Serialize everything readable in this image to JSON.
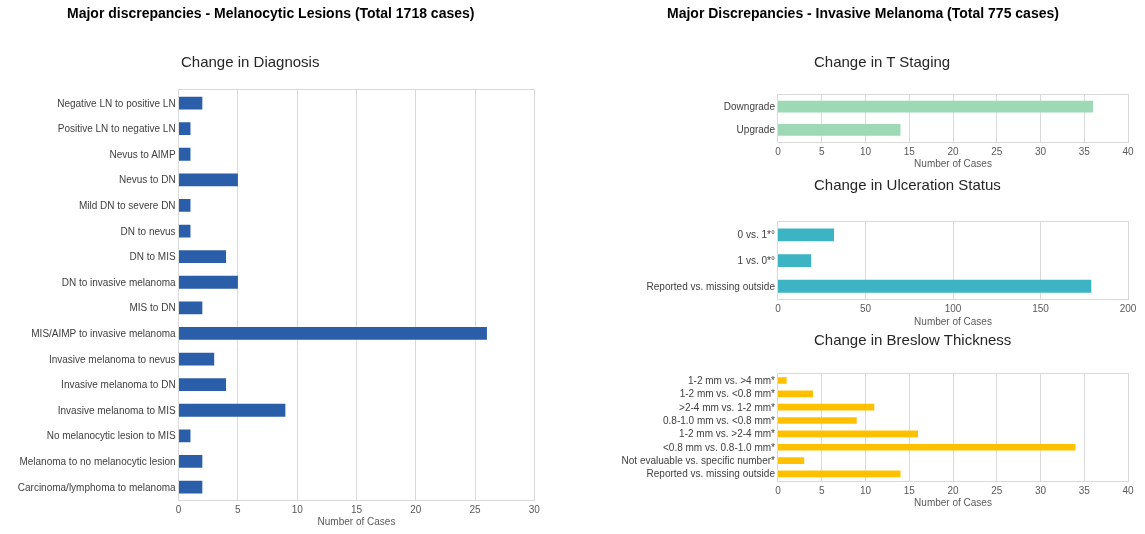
{
  "chart_data": [
    {
      "type": "bar",
      "orientation": "horizontal",
      "title": "Major discrepancies - Melanocytic Lesions (Total 1718 cases)",
      "subtitle": "Change in Diagnosis",
      "xlabel": "Number of Cases",
      "categories": [
        "Negative LN to positive LN",
        "Positive LN to negative LN",
        "Nevus to AIMP",
        "Nevus to DN",
        "Mild DN to severe DN",
        "DN to nevus",
        "DN to MIS",
        "DN to invasive melanoma",
        "MIS to DN",
        "MIS/AIMP to invasive melanoma",
        "Invasive melanoma to nevus",
        "Invasive melanoma to DN",
        "Invasive melanoma to MIS",
        "No melanocytic lesion to MIS",
        "Melanoma to no melanocytic lesion",
        "Carcinoma/lymphoma to melanoma"
      ],
      "values": [
        2,
        1,
        1,
        5,
        1,
        1,
        4,
        5,
        2,
        26,
        3,
        4,
        9,
        1,
        2,
        2
      ],
      "color": "#2b5ea8",
      "xlim": [
        0,
        30
      ],
      "xticks": [
        0,
        5,
        10,
        15,
        20,
        25,
        30
      ],
      "grid": "x"
    },
    {
      "type": "bar",
      "orientation": "horizontal",
      "title": "Major Discrepancies - Invasive Melanoma (Total 775 cases)",
      "subtitle": "Change in T Staging",
      "xlabel": "Number of Cases",
      "categories": [
        "Downgrade",
        "Upgrade"
      ],
      "values": [
        36,
        14
      ],
      "color": "#9dd9b5",
      "xlim": [
        0,
        40
      ],
      "xticks": [
        0,
        5,
        10,
        15,
        20,
        25,
        30,
        35,
        40
      ],
      "grid": "x"
    },
    {
      "type": "bar",
      "orientation": "horizontal",
      "subtitle": "Change in Ulceration Status",
      "xlabel": "Number of Cases",
      "categories": [
        "0 vs. 1*°",
        "1 vs. 0*°",
        "Reported vs. missing outside"
      ],
      "values": [
        32,
        19,
        179
      ],
      "color": "#3cb4c4",
      "xlim": [
        0,
        200
      ],
      "xticks": [
        0,
        50,
        100,
        150,
        200
      ],
      "grid": "x"
    },
    {
      "type": "bar",
      "orientation": "horizontal",
      "subtitle": "Change in Breslow Thickness",
      "xlabel": "Number of Cases",
      "categories": [
        "1-2 mm vs. >4 mm*",
        "1-2 mm vs. <0.8 mm*",
        ">2-4 mm vs. 1-2 mm*",
        "0.8-1.0 mm vs. <0.8 mm*",
        "1-2 mm vs. >2-4 mm*",
        "<0.8 mm vs. 0.8-1.0 mm*",
        "Not evaluable vs. specific number*",
        "Reported vs. missing outside"
      ],
      "values": [
        1,
        4,
        11,
        9,
        16,
        34,
        3,
        14
      ],
      "color": "#ffc000",
      "xlim": [
        0,
        40
      ],
      "xticks": [
        0,
        5,
        10,
        15,
        20,
        25,
        30,
        35,
        40
      ],
      "grid": "x"
    }
  ]
}
